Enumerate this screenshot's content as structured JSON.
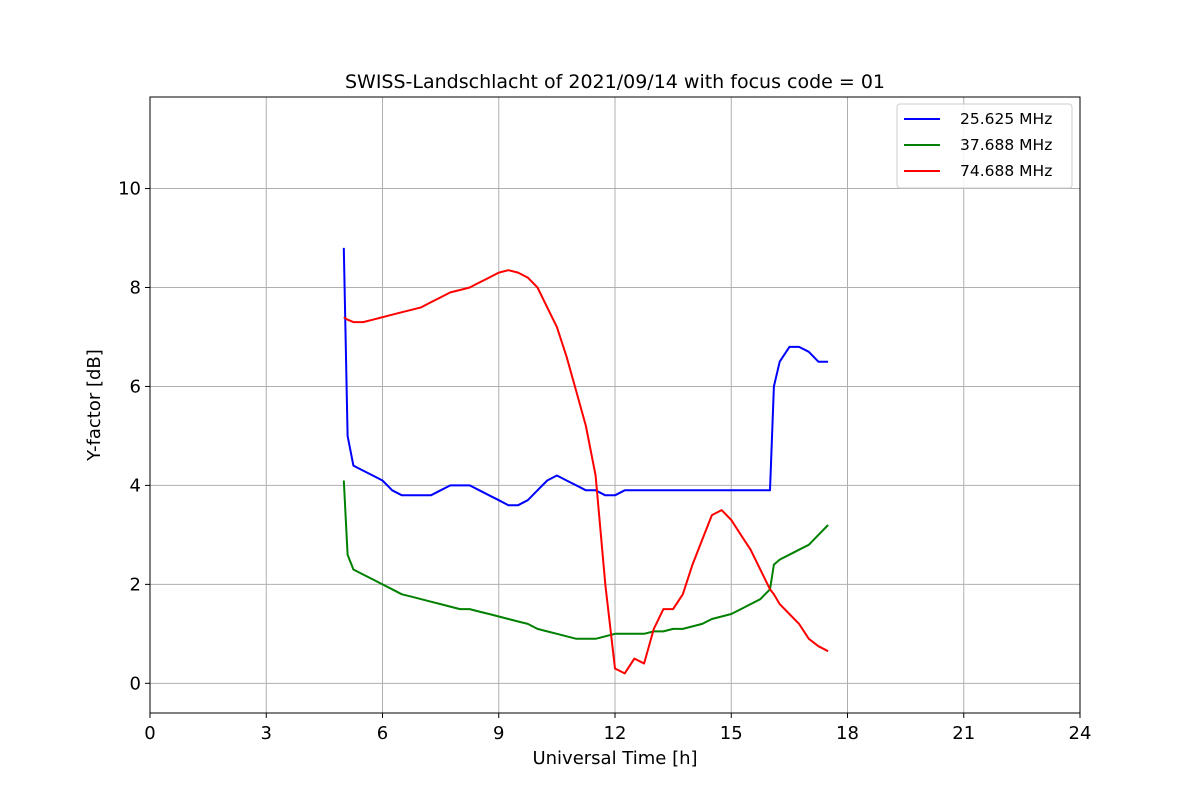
{
  "chart_data": {
    "type": "line",
    "title": "SWISS-Landschlacht of 2021/09/14 with focus code = 01",
    "xlabel": "Universal Time [h]",
    "ylabel": "Y-factor [dB]",
    "xlim": [
      0,
      24
    ],
    "ylim": [
      -0.6,
      11.85
    ],
    "xticks": [
      0,
      3,
      6,
      9,
      12,
      15,
      18,
      21,
      24
    ],
    "yticks": [
      0,
      2,
      4,
      6,
      8,
      10
    ],
    "grid": true,
    "legend_position": "top-right",
    "series": [
      {
        "name": "25.625 MHz",
        "color": "#0000ff",
        "x": [
          5.0,
          5.1,
          5.25,
          5.5,
          5.75,
          6.0,
          6.25,
          6.5,
          6.75,
          7.0,
          7.25,
          7.5,
          7.75,
          8.0,
          8.25,
          8.5,
          8.75,
          9.0,
          9.25,
          9.5,
          9.75,
          10.0,
          10.25,
          10.5,
          10.75,
          11.0,
          11.25,
          11.5,
          11.75,
          12.0,
          12.25,
          12.5,
          12.75,
          13.0,
          13.25,
          13.5,
          13.75,
          14.0,
          14.25,
          14.5,
          14.75,
          15.0,
          15.25,
          15.5,
          15.75,
          16.0,
          16.1,
          16.25,
          16.5,
          16.75,
          17.0,
          17.25,
          17.5
        ],
        "y": [
          8.8,
          5.0,
          4.4,
          4.3,
          4.2,
          4.1,
          3.9,
          3.8,
          3.8,
          3.8,
          3.8,
          3.9,
          4.0,
          4.0,
          4.0,
          3.9,
          3.8,
          3.7,
          3.6,
          3.6,
          3.7,
          3.9,
          4.1,
          4.2,
          4.1,
          4.0,
          3.9,
          3.9,
          3.8,
          3.8,
          3.9,
          3.9,
          3.9,
          3.9,
          3.9,
          3.9,
          3.9,
          3.9,
          3.9,
          3.9,
          3.9,
          3.9,
          3.9,
          3.9,
          3.9,
          3.9,
          6.0,
          6.5,
          6.8,
          6.8,
          6.7,
          6.5,
          6.5
        ]
      },
      {
        "name": "37.688 MHz",
        "color": "#008000",
        "x": [
          5.0,
          5.1,
          5.25,
          5.5,
          5.75,
          6.0,
          6.25,
          6.5,
          6.75,
          7.0,
          7.25,
          7.5,
          7.75,
          8.0,
          8.25,
          8.5,
          8.75,
          9.0,
          9.25,
          9.5,
          9.75,
          10.0,
          10.25,
          10.5,
          10.75,
          11.0,
          11.25,
          11.5,
          11.75,
          12.0,
          12.25,
          12.5,
          12.75,
          13.0,
          13.25,
          13.5,
          13.75,
          14.0,
          14.25,
          14.5,
          14.75,
          15.0,
          15.25,
          15.5,
          15.75,
          16.0,
          16.1,
          16.25,
          16.5,
          16.75,
          17.0,
          17.25,
          17.5
        ],
        "y": [
          4.1,
          2.6,
          2.3,
          2.2,
          2.1,
          2.0,
          1.9,
          1.8,
          1.75,
          1.7,
          1.65,
          1.6,
          1.55,
          1.5,
          1.5,
          1.45,
          1.4,
          1.35,
          1.3,
          1.25,
          1.2,
          1.1,
          1.05,
          1.0,
          0.95,
          0.9,
          0.9,
          0.9,
          0.95,
          1.0,
          1.0,
          1.0,
          1.0,
          1.05,
          1.05,
          1.1,
          1.1,
          1.15,
          1.2,
          1.3,
          1.35,
          1.4,
          1.5,
          1.6,
          1.7,
          1.9,
          2.4,
          2.5,
          2.6,
          2.7,
          2.8,
          3.0,
          3.2
        ]
      },
      {
        "name": "74.688 MHz",
        "color": "#ff0000",
        "x": [
          5.0,
          5.1,
          5.25,
          5.5,
          5.75,
          6.0,
          6.25,
          6.5,
          6.75,
          7.0,
          7.25,
          7.5,
          7.75,
          8.0,
          8.25,
          8.5,
          8.75,
          9.0,
          9.25,
          9.5,
          9.75,
          10.0,
          10.25,
          10.5,
          10.75,
          11.0,
          11.25,
          11.5,
          11.75,
          12.0,
          12.25,
          12.5,
          12.75,
          13.0,
          13.25,
          13.5,
          13.75,
          14.0,
          14.25,
          14.5,
          14.75,
          15.0,
          15.25,
          15.5,
          15.75,
          16.0,
          16.1,
          16.25,
          16.5,
          16.75,
          17.0,
          17.25,
          17.5
        ],
        "y": [
          7.4,
          7.35,
          7.3,
          7.3,
          7.35,
          7.4,
          7.45,
          7.5,
          7.55,
          7.6,
          7.7,
          7.8,
          7.9,
          7.95,
          8.0,
          8.1,
          8.2,
          8.3,
          8.35,
          8.3,
          8.2,
          8.0,
          7.6,
          7.2,
          6.6,
          5.9,
          5.2,
          4.2,
          2.0,
          0.3,
          0.2,
          0.5,
          0.4,
          1.1,
          1.5,
          1.5,
          1.8,
          2.4,
          2.9,
          3.4,
          3.5,
          3.3,
          3.0,
          2.7,
          2.3,
          1.9,
          1.8,
          1.6,
          1.4,
          1.2,
          0.9,
          0.75,
          0.65
        ]
      }
    ]
  }
}
